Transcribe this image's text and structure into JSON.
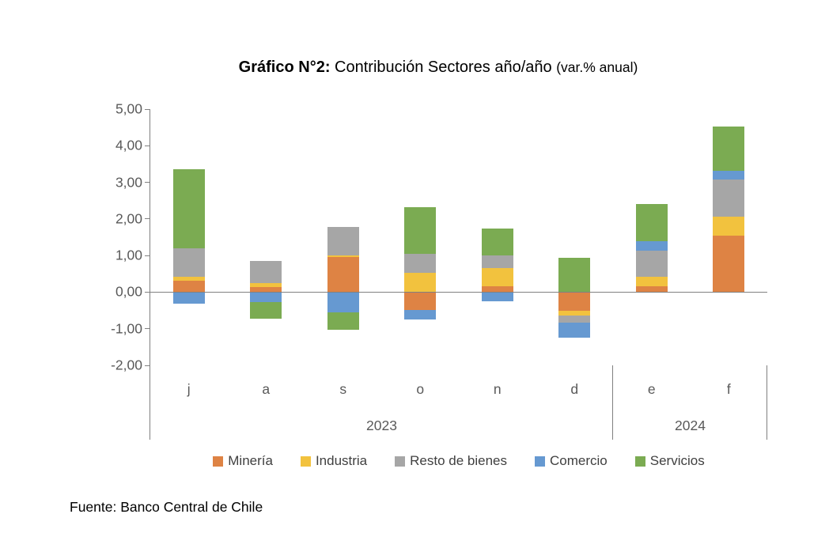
{
  "title": {
    "prefix": "Gráfico N°2:",
    "main": " Contribución Sectores año/año ",
    "suffix": "(var.% anual)"
  },
  "source": {
    "text": "Fuente: Banco Central de Chile"
  },
  "colors": {
    "axis_line": "#808080",
    "axis_text": "#595959",
    "legend_text": "#404040",
    "mineria": "#DE8344",
    "industria": "#F2C23E",
    "resto_de_bienes": "#A6A6A6",
    "comercio": "#6699D1",
    "servicios": "#7BAB52"
  },
  "chart_data": {
    "type": "bar",
    "stacked": true,
    "title": "Gráfico N°2: Contribución Sectores año/año (var.% anual)",
    "xlabel": "",
    "ylabel": "",
    "categories": [
      "j",
      "a",
      "s",
      "o",
      "n",
      "d",
      "e",
      "f"
    ],
    "group_labels": [
      {
        "label": "2023",
        "span": [
          0,
          5
        ]
      },
      {
        "label": "2024",
        "span": [
          6,
          7
        ]
      }
    ],
    "series": [
      {
        "name": "Minería",
        "color": "#DE8344",
        "values": [
          0.31,
          0.14,
          0.97,
          -0.48,
          0.17,
          -0.52,
          0.16,
          1.55
        ]
      },
      {
        "name": "Industria",
        "color": "#F2C23E",
        "values": [
          0.12,
          0.11,
          0.04,
          0.52,
          0.48,
          -0.12,
          0.27,
          0.52
        ]
      },
      {
        "name": "Resto de bienes",
        "color": "#A6A6A6",
        "values": [
          0.76,
          0.6,
          0.78,
          0.53,
          0.36,
          -0.19,
          0.7,
          1.01
        ]
      },
      {
        "name": "Comercio",
        "color": "#6699D1",
        "values": [
          -0.32,
          -0.27,
          -0.56,
          -0.26,
          -0.24,
          -0.42,
          0.26,
          0.23
        ]
      },
      {
        "name": "Servicios",
        "color": "#7BAB52",
        "values": [
          2.17,
          -0.45,
          -0.47,
          1.28,
          0.73,
          0.93,
          1.01,
          1.22
        ]
      }
    ],
    "ylim": [
      -2,
      5
    ],
    "ytick_step": 1,
    "yticks": [
      {
        "value": 5,
        "label": "5,00"
      },
      {
        "value": 4,
        "label": "4,00"
      },
      {
        "value": 3,
        "label": "3,00"
      },
      {
        "value": 2,
        "label": "2,00"
      },
      {
        "value": 1,
        "label": "1,00"
      },
      {
        "value": 0,
        "label": "0,00"
      },
      {
        "value": -1,
        "label": "-1,00"
      },
      {
        "value": -2,
        "label": "-2,00"
      }
    ],
    "grid": false,
    "legend_position": "bottom"
  }
}
